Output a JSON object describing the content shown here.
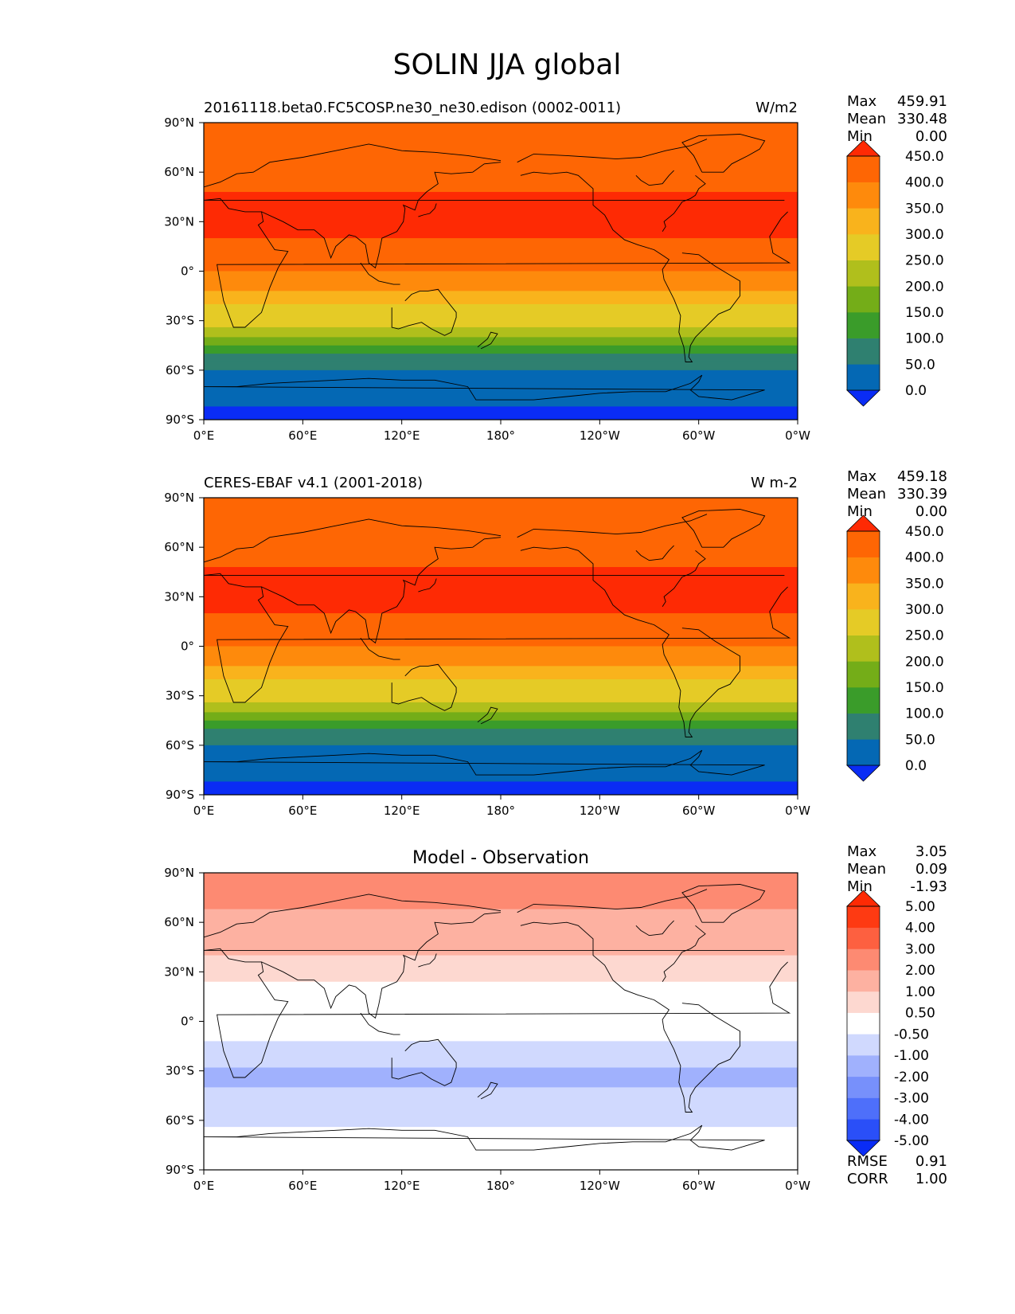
{
  "figure": {
    "title": "SOLIN JJA global"
  },
  "panels": [
    {
      "id": "test",
      "title": "",
      "left_title": "20161118.beta0.FC5COSP.ne30_ne30.edison (0002-0011)",
      "units": "W/m2",
      "stats": [
        {
          "label": "Max",
          "value": "459.91"
        },
        {
          "label": "Mean",
          "value": "330.48"
        },
        {
          "label": "Min",
          "value": "0.00"
        }
      ],
      "colorbar": {
        "tick_labels": [
          "450.0",
          "400.0",
          "350.0",
          "300.0",
          "250.0",
          "200.0",
          "150.0",
          "100.0",
          "50.0",
          "0.0"
        ],
        "colors": [
          "#0a2cf5",
          "#0468b4",
          "#2f8070",
          "#3a9c2a",
          "#74ad18",
          "#b0bf1c",
          "#e5cb26",
          "#f9b31c",
          "#fe8a0c",
          "#fe6604",
          "#fe2a04"
        ]
      },
      "bands_by_colorbar_index": [
        {
          "lat_south": 82,
          "lat_north": 90,
          "ci": 9
        },
        {
          "lat_south": 48,
          "lat_north": 82,
          "ci": 9
        },
        {
          "lat_south": 20,
          "lat_north": 48,
          "ci": 10
        },
        {
          "lat_south": 0,
          "lat_north": 20,
          "ci": 9
        },
        {
          "lat_south": -12,
          "lat_north": 0,
          "ci": 8
        },
        {
          "lat_south": -20,
          "lat_north": -12,
          "ci": 7
        },
        {
          "lat_south": -28,
          "lat_north": -20,
          "ci": 6
        },
        {
          "lat_south": -34,
          "lat_north": -28,
          "ci": 6
        },
        {
          "lat_south": -40,
          "lat_north": -34,
          "ci": 5
        },
        {
          "lat_south": -45,
          "lat_north": -40,
          "ci": 4
        },
        {
          "lat_south": -50,
          "lat_north": -45,
          "ci": 3
        },
        {
          "lat_south": -55,
          "lat_north": -50,
          "ci": 2
        },
        {
          "lat_south": -60,
          "lat_north": -55,
          "ci": 2
        },
        {
          "lat_south": -82,
          "lat_north": -60,
          "ci": 1
        },
        {
          "lat_south": -90,
          "lat_north": -82,
          "ci": 0
        }
      ]
    },
    {
      "id": "reference",
      "title": "",
      "left_title": "CERES-EBAF v4.1 (2001-2018)",
      "units": "W m-2",
      "stats": [
        {
          "label": "Max",
          "value": "459.18"
        },
        {
          "label": "Mean",
          "value": "330.39"
        },
        {
          "label": "Min",
          "value": "0.00"
        }
      ],
      "colorbar": {
        "tick_labels": [
          "450.0",
          "400.0",
          "350.0",
          "300.0",
          "250.0",
          "200.0",
          "150.0",
          "100.0",
          "50.0",
          "0.0"
        ],
        "colors": [
          "#0a2cf5",
          "#0468b4",
          "#2f8070",
          "#3a9c2a",
          "#74ad18",
          "#b0bf1c",
          "#e5cb26",
          "#f9b31c",
          "#fe8a0c",
          "#fe6604",
          "#fe2a04"
        ]
      },
      "bands_by_colorbar_index": [
        {
          "lat_south": 82,
          "lat_north": 90,
          "ci": 9
        },
        {
          "lat_south": 48,
          "lat_north": 82,
          "ci": 9
        },
        {
          "lat_south": 20,
          "lat_north": 48,
          "ci": 10
        },
        {
          "lat_south": 0,
          "lat_north": 20,
          "ci": 9
        },
        {
          "lat_south": -12,
          "lat_north": 0,
          "ci": 8
        },
        {
          "lat_south": -20,
          "lat_north": -12,
          "ci": 7
        },
        {
          "lat_south": -28,
          "lat_north": -20,
          "ci": 6
        },
        {
          "lat_south": -34,
          "lat_north": -28,
          "ci": 6
        },
        {
          "lat_south": -40,
          "lat_north": -34,
          "ci": 5
        },
        {
          "lat_south": -45,
          "lat_north": -40,
          "ci": 4
        },
        {
          "lat_south": -50,
          "lat_north": -45,
          "ci": 3
        },
        {
          "lat_south": -55,
          "lat_north": -50,
          "ci": 2
        },
        {
          "lat_south": -60,
          "lat_north": -55,
          "ci": 2
        },
        {
          "lat_south": -82,
          "lat_north": -60,
          "ci": 1
        },
        {
          "lat_south": -90,
          "lat_north": -82,
          "ci": 0
        }
      ]
    },
    {
      "id": "diff",
      "title": "Model - Observation",
      "left_title": "",
      "units": "",
      "stats": [
        {
          "label": "Max",
          "value": "3.05"
        },
        {
          "label": "Mean",
          "value": "0.09"
        },
        {
          "label": "Min",
          "value": "-1.93"
        }
      ],
      "colorbar": {
        "tick_labels": [
          "5.00",
          "4.00",
          "3.00",
          "2.00",
          "1.00",
          "0.50",
          "-0.50",
          "-1.00",
          "-2.00",
          "-3.00",
          "-4.00",
          "-5.00"
        ],
        "colors": [
          "#0a2cf5",
          "#2a4ff8",
          "#4e6ffa",
          "#7790fb",
          "#a0b1fd",
          "#d0d9fe",
          "#ffffff",
          "#fdd8d0",
          "#fdb1a1",
          "#fd8a72",
          "#fd6040",
          "#fe3a12",
          "#fe2a04"
        ]
      },
      "bands_by_colorbar_index": [
        {
          "lat_south": 68,
          "lat_north": 90,
          "ci": 9
        },
        {
          "lat_south": 40,
          "lat_north": 68,
          "ci": 8
        },
        {
          "lat_south": 24,
          "lat_north": 40,
          "ci": 7
        },
        {
          "lat_south": -12,
          "lat_north": 24,
          "ci": 6
        },
        {
          "lat_south": -20,
          "lat_north": -12,
          "ci": 5
        },
        {
          "lat_south": -28,
          "lat_north": -20,
          "ci": 5
        },
        {
          "lat_south": -40,
          "lat_north": -28,
          "ci": 4
        },
        {
          "lat_south": -52,
          "lat_north": -40,
          "ci": 5
        },
        {
          "lat_south": -64,
          "lat_north": -52,
          "ci": 5
        },
        {
          "lat_south": -90,
          "lat_north": -64,
          "ci": 6
        }
      ],
      "metrics": [
        {
          "label": "RMSE",
          "value": "0.91"
        },
        {
          "label": "CORR",
          "value": "1.00"
        }
      ]
    }
  ],
  "axes": {
    "lat_ticks": [
      {
        "value": 90,
        "label": "90°N"
      },
      {
        "value": 60,
        "label": "60°N"
      },
      {
        "value": 30,
        "label": "30°N"
      },
      {
        "value": 0,
        "label": "0°"
      },
      {
        "value": -30,
        "label": "30°S"
      },
      {
        "value": -60,
        "label": "60°S"
      },
      {
        "value": -90,
        "label": "90°S"
      }
    ],
    "lon_ticks": [
      {
        "value": 0,
        "label": "0°E"
      },
      {
        "value": 60,
        "label": "60°E"
      },
      {
        "value": 120,
        "label": "120°E"
      },
      {
        "value": 180,
        "label": "180°"
      },
      {
        "value": 240,
        "label": "120°W"
      },
      {
        "value": 300,
        "label": "60°W"
      },
      {
        "value": 360,
        "label": "0°W"
      }
    ]
  },
  "chart_data": [
    {
      "type": "heatmap",
      "title": "20161118.beta0.FC5COSP.ne30_ne30.edison (0002-0011)",
      "units": "W/m2",
      "xlim": [
        0,
        360
      ],
      "ylim": [
        -90,
        90
      ],
      "levels": [
        0,
        50,
        100,
        150,
        200,
        250,
        300,
        350,
        400,
        450
      ],
      "stats": {
        "max": 459.91,
        "mean": 330.48,
        "min": 0.0
      }
    },
    {
      "type": "heatmap",
      "title": "CERES-EBAF v4.1 (2001-2018)",
      "units": "W m-2",
      "xlim": [
        0,
        360
      ],
      "ylim": [
        -90,
        90
      ],
      "levels": [
        0,
        50,
        100,
        150,
        200,
        250,
        300,
        350,
        400,
        450
      ],
      "stats": {
        "max": 459.18,
        "mean": 330.39,
        "min": 0.0
      }
    },
    {
      "type": "heatmap",
      "title": "Model - Observation",
      "xlim": [
        0,
        360
      ],
      "ylim": [
        -90,
        90
      ],
      "levels": [
        -5,
        -4,
        -3,
        -2,
        -1,
        -0.5,
        0.5,
        1,
        2,
        3,
        4,
        5
      ],
      "stats": {
        "max": 3.05,
        "mean": 0.09,
        "min": -1.93,
        "rmse": 0.91,
        "corr": 1.0
      }
    }
  ]
}
